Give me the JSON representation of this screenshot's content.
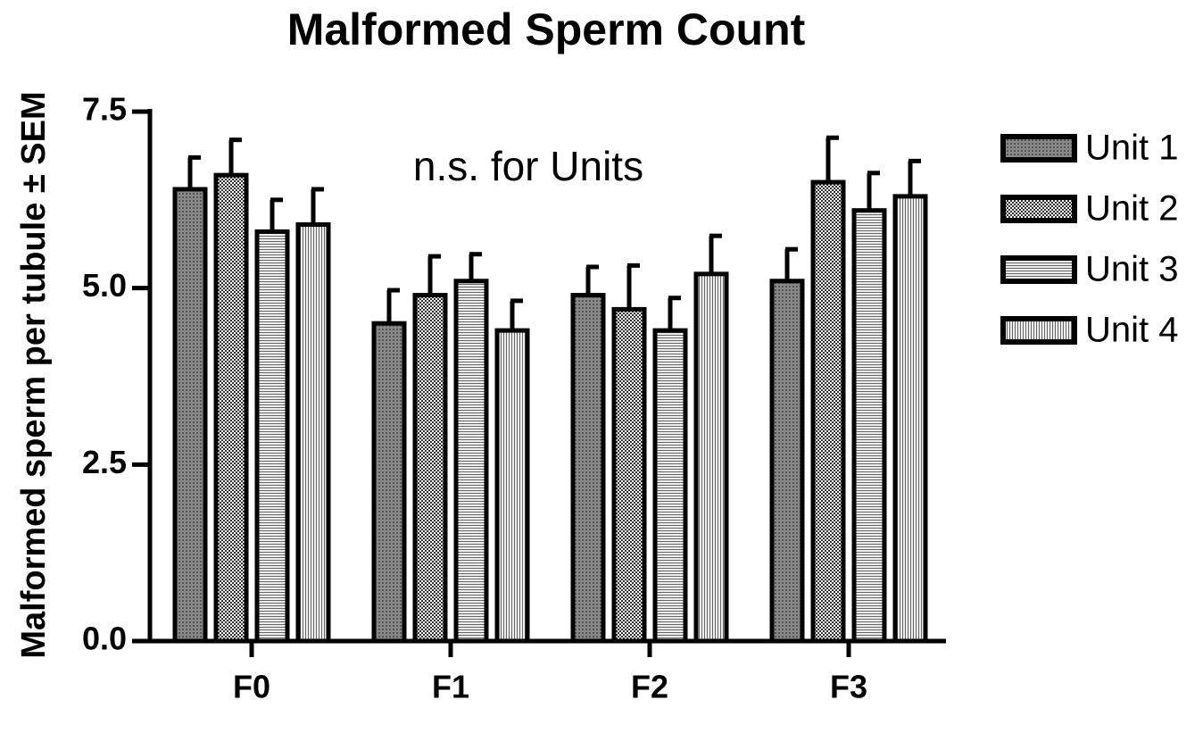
{
  "chart_data": {
    "type": "bar",
    "title": "Malformed Sperm Count",
    "y_label": "Malformed sperm per tubule ± SEM",
    "annotation": "n.s. for Units",
    "categories": [
      "F0",
      "F1",
      "F2",
      "F3"
    ],
    "series": [
      {
        "name": "Unit 1",
        "values": [
          6.4,
          4.5,
          4.9,
          5.1
        ],
        "errors": [
          0.45,
          0.47,
          0.4,
          0.45
        ]
      },
      {
        "name": "Unit 2",
        "values": [
          6.6,
          4.9,
          4.7,
          6.5
        ],
        "errors": [
          0.5,
          0.55,
          0.62,
          0.63
        ]
      },
      {
        "name": "Unit 3",
        "values": [
          5.8,
          5.1,
          4.4,
          6.1
        ],
        "errors": [
          0.45,
          0.38,
          0.46,
          0.53
        ]
      },
      {
        "name": "Unit 4",
        "values": [
          5.9,
          4.4,
          5.2,
          6.3
        ],
        "errors": [
          0.5,
          0.42,
          0.54,
          0.5
        ]
      }
    ],
    "ylim": [
      0,
      7.5
    ],
    "yticks": [
      {
        "value": 0,
        "label": "0.0"
      },
      2.5,
      {
        "value": 5,
        "label": "5.0"
      },
      7.5
    ],
    "legend": "right"
  }
}
